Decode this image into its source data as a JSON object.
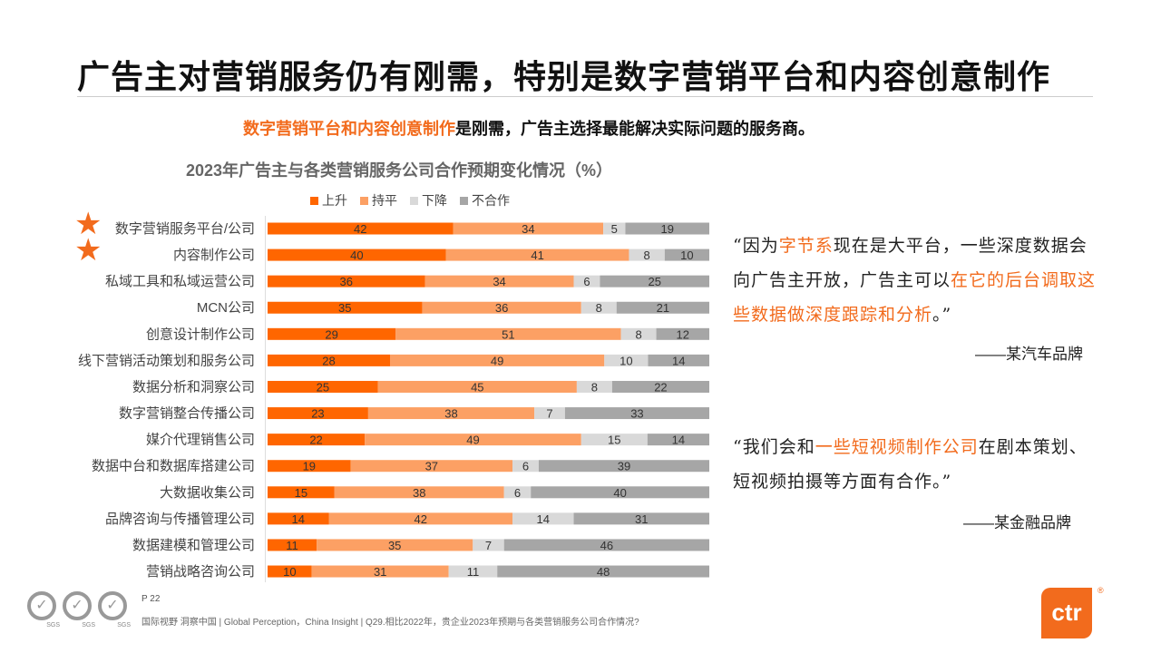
{
  "title": "广告主对营销服务仍有刚需，特别是数字营销平台和内容创意制作",
  "subtitle": {
    "highlight": "数字营销平台和内容创意制作",
    "rest": "是刚需，广告主选择最能解决实际问题的服务商。"
  },
  "chart_data": {
    "type": "bar",
    "orientation": "horizontal-stacked-100",
    "title": "2023年广告主与各类营销服务公司合作预期变化情况（%）",
    "legend_position": "top",
    "categories": [
      "数字营销服务平台/公司",
      "内容制作公司",
      "私域工具和私域运营公司",
      "MCN公司",
      "创意设计制作公司",
      "线下营销活动策划和服务公司",
      "数据分析和洞察公司",
      "数字营销整合传播公司",
      "媒介代理销售公司",
      "数据中台和数据库搭建公司",
      "大数据收集公司",
      "品牌咨询与传播管理公司",
      "数据建模和管理公司",
      "营销战略咨询公司"
    ],
    "starred": [
      0,
      1
    ],
    "series": [
      {
        "name": "上升",
        "color": "#ff6600",
        "values": [
          42,
          40,
          36,
          35,
          29,
          28,
          25,
          23,
          22,
          19,
          15,
          14,
          11,
          10
        ]
      },
      {
        "name": "持平",
        "color": "#fca064",
        "values": [
          34,
          41,
          34,
          36,
          51,
          49,
          45,
          38,
          49,
          37,
          38,
          42,
          35,
          31
        ]
      },
      {
        "name": "下降",
        "color": "#d9d9d9",
        "values": [
          5,
          8,
          6,
          8,
          8,
          10,
          8,
          7,
          15,
          6,
          6,
          14,
          7,
          11
        ]
      },
      {
        "name": "不合作",
        "color": "#a6a6a6",
        "values": [
          19,
          10,
          25,
          21,
          12,
          14,
          22,
          33,
          14,
          39,
          40,
          31,
          46,
          48
        ]
      }
    ]
  },
  "quotes": [
    {
      "segments": [
        {
          "t": "“因为",
          "h": false
        },
        {
          "t": "字节系",
          "h": true
        },
        {
          "t": "现在是大平台，一些深度数据会向广告主开放，广告主可以",
          "h": false
        },
        {
          "t": "在它的后台调取这些数据做深度跟踪和分析",
          "h": true
        },
        {
          "t": "。”",
          "h": false
        }
      ],
      "source": "——某汽车品牌"
    },
    {
      "segments": [
        {
          "t": "“我们会和",
          "h": false
        },
        {
          "t": "一些短视频制作公司",
          "h": true
        },
        {
          "t": "在剧本策划、短视频拍摄等方面有合作。”",
          "h": false
        }
      ],
      "source": "——某金融品牌"
    }
  ],
  "footer": {
    "page": "P 22",
    "text": "国际视野  洞察中国 |  Global Perception，China Insight |  Q29.相比2022年，贵企业2023年预期与各类营销服务公司合作情况?",
    "badges": [
      "SGS",
      "SGS",
      "SGS"
    ]
  },
  "logo": {
    "text": "ctr",
    "mark": "®"
  }
}
